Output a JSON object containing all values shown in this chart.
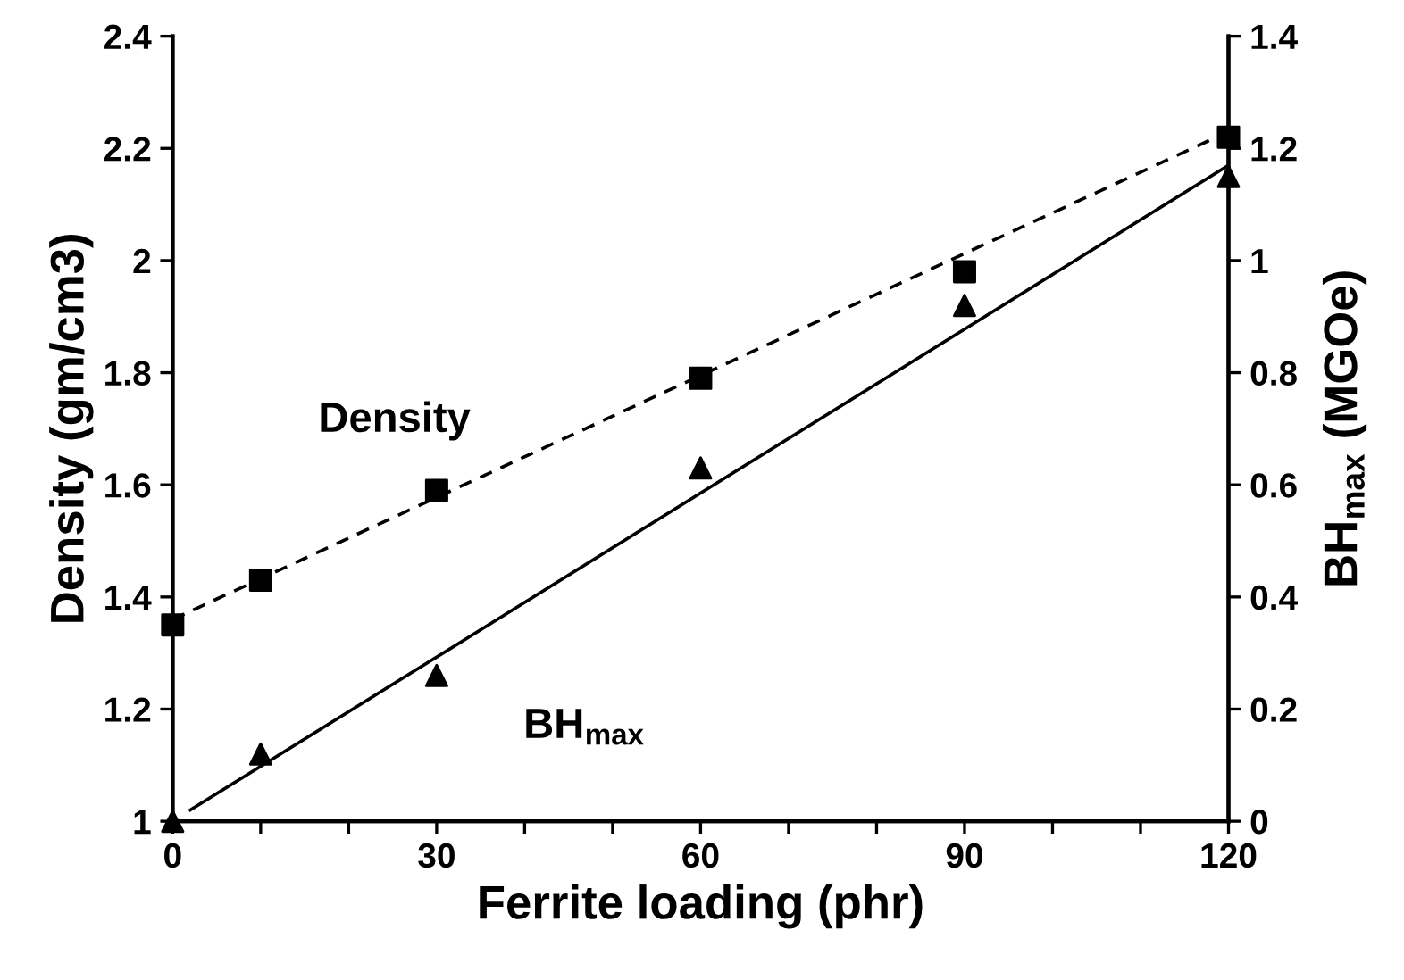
{
  "chart_data": {
    "type": "scatter",
    "xlabel": "Ferrite loading (phr)",
    "ylabel": "Density (gm/cm3)",
    "y2label": "BH$_{max}$ (MGOe)",
    "xlim": [
      0,
      120
    ],
    "xticks": [
      0,
      {
        "value": 10,
        "label": null
      },
      {
        "value": 20,
        "label": null
      },
      30,
      {
        "value": 40,
        "label": null
      },
      {
        "value": 50,
        "label": null
      },
      60,
      {
        "value": 70,
        "label": null
      },
      {
        "value": 80,
        "label": null
      },
      90,
      {
        "value": 100,
        "label": null
      },
      {
        "value": 110,
        "label": null
      },
      120
    ],
    "ylim": [
      1,
      2.4
    ],
    "yticks": [
      1,
      1.2,
      1.4,
      1.6,
      1.8,
      2,
      2.2,
      2.4
    ],
    "y2lim": [
      0,
      1.4
    ],
    "y2ticks": [
      0,
      0.2,
      0.4,
      0.6,
      0.8,
      1,
      1.2,
      1.4
    ],
    "grid": false,
    "series": [
      {
        "marker": "square",
        "color": "#000000",
        "x": [
          0,
          10,
          30,
          60,
          90,
          120
        ],
        "values": [
          1.35,
          1.43,
          1.59,
          1.79,
          1.98,
          2.22
        ]
      },
      {
        "marker": "triangle",
        "color": "#000000",
        "axis": "y2",
        "x": [
          0,
          10,
          30,
          60,
          90,
          120
        ],
        "values": [
          0,
          0.12,
          0.26,
          0.63,
          0.92,
          1.15
        ]
      },
      {
        "type": "line",
        "marker": "none",
        "line_style": "dashed",
        "color": "#000000",
        "x": [
          0,
          120
        ],
        "values": [
          1.36,
          2.23
        ]
      },
      {
        "type": "line",
        "marker": "none",
        "line_style": "solid",
        "color": "#000000",
        "axis": "y2",
        "x": [
          2,
          120
        ],
        "values": [
          0.02,
          1.17
        ]
      }
    ],
    "annotations": [
      "Density",
      "BH$_{max}$"
    ]
  }
}
